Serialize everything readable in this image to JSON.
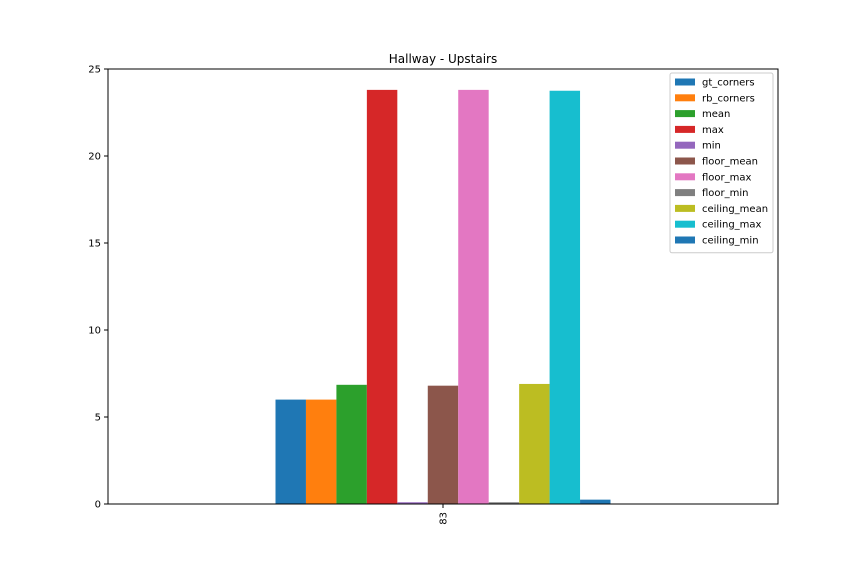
{
  "chart_data": {
    "type": "bar",
    "title": "Hallway - Upstairs",
    "xlabel": "",
    "ylabel": "",
    "categories": [
      "83"
    ],
    "ylim": [
      0,
      25
    ],
    "yticks": [
      0,
      5,
      10,
      15,
      20,
      25
    ],
    "grid": false,
    "legend_position": "top-right",
    "series": [
      {
        "name": "gt_corners",
        "values": [
          6.0
        ],
        "color": "#1f77b4"
      },
      {
        "name": "rb_corners",
        "values": [
          6.0
        ],
        "color": "#ff7f0e"
      },
      {
        "name": "mean",
        "values": [
          6.85
        ],
        "color": "#2ca02c"
      },
      {
        "name": "max",
        "values": [
          23.8
        ],
        "color": "#d62728"
      },
      {
        "name": "min",
        "values": [
          0.1
        ],
        "color": "#9467bd"
      },
      {
        "name": "floor_mean",
        "values": [
          6.8
        ],
        "color": "#8c564b"
      },
      {
        "name": "floor_max",
        "values": [
          23.8
        ],
        "color": "#e377c2"
      },
      {
        "name": "floor_min",
        "values": [
          0.1
        ],
        "color": "#7f7f7f"
      },
      {
        "name": "ceiling_mean",
        "values": [
          6.9
        ],
        "color": "#bcbd22"
      },
      {
        "name": "ceiling_max",
        "values": [
          23.75
        ],
        "color": "#17becf"
      },
      {
        "name": "ceiling_min",
        "values": [
          0.25
        ],
        "color": "#1f77b4"
      }
    ]
  }
}
